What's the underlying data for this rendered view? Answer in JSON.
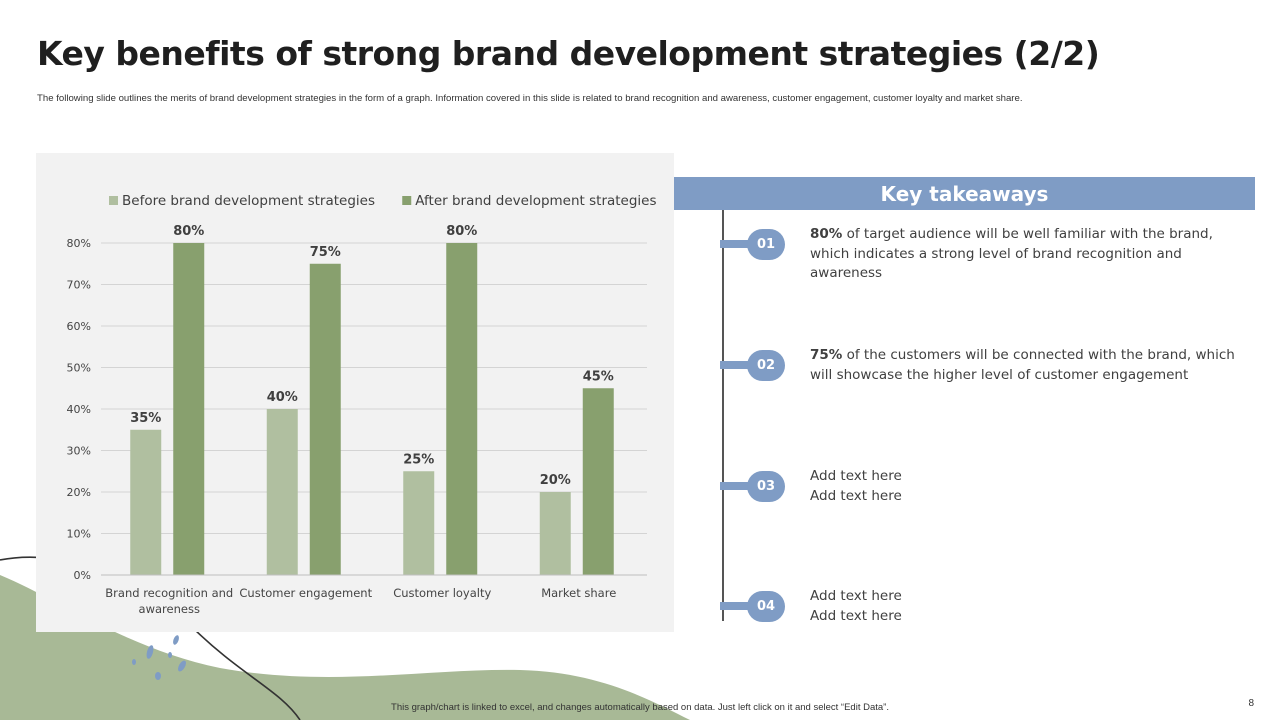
{
  "slide": {
    "title": "Key benefits of strong brand development strategies (2/2)",
    "subtitle": "The following slide outlines the merits of brand development strategies in the form of a graph. Information covered in this slide is related to brand recognition and awareness, customer engagement, customer loyalty and market share.",
    "footer": "This graph/chart is linked to excel, and changes automatically based on data. Just left click on it and select “Edit Data”.",
    "page_number": "8"
  },
  "colors": {
    "before": "#b0bfa0",
    "after": "#88a06e",
    "accent": "#7f9cc5",
    "decor_green": "#a8b996"
  },
  "chart_data": {
    "type": "bar",
    "categories": [
      "Brand recognition and awareness",
      "Customer engagement",
      "Customer loyalty",
      "Market share"
    ],
    "series": [
      {
        "name": "Before brand development strategies",
        "values": [
          35,
          40,
          25,
          20
        ]
      },
      {
        "name": "After brand development strategies",
        "values": [
          80,
          75,
          80,
          45
        ]
      }
    ],
    "data_labels": [
      [
        "35%",
        "40%",
        "25%",
        "20%"
      ],
      [
        "80%",
        "75%",
        "80%",
        "45%"
      ]
    ],
    "ylim": [
      0,
      80
    ],
    "yticks": [
      "0%",
      "10%",
      "20%",
      "30%",
      "40%",
      "50%",
      "60%",
      "70%",
      "80%"
    ],
    "grid": true,
    "legend_position": "top"
  },
  "takeaways": {
    "header": "Key takeaways",
    "items": [
      {
        "number": "01",
        "bold": "80%",
        "text": " of target audience will be well familiar with the brand, which indicates a strong level of brand recognition and awareness"
      },
      {
        "number": "02",
        "bold": "75%",
        "text": " of the customers will be connected with the brand, which will showcase the higher level of customer engagement"
      },
      {
        "number": "03",
        "bold": "",
        "text": "Add text here\nAdd text here"
      },
      {
        "number": "04",
        "bold": "",
        "text": "Add text here\nAdd text here"
      }
    ]
  }
}
